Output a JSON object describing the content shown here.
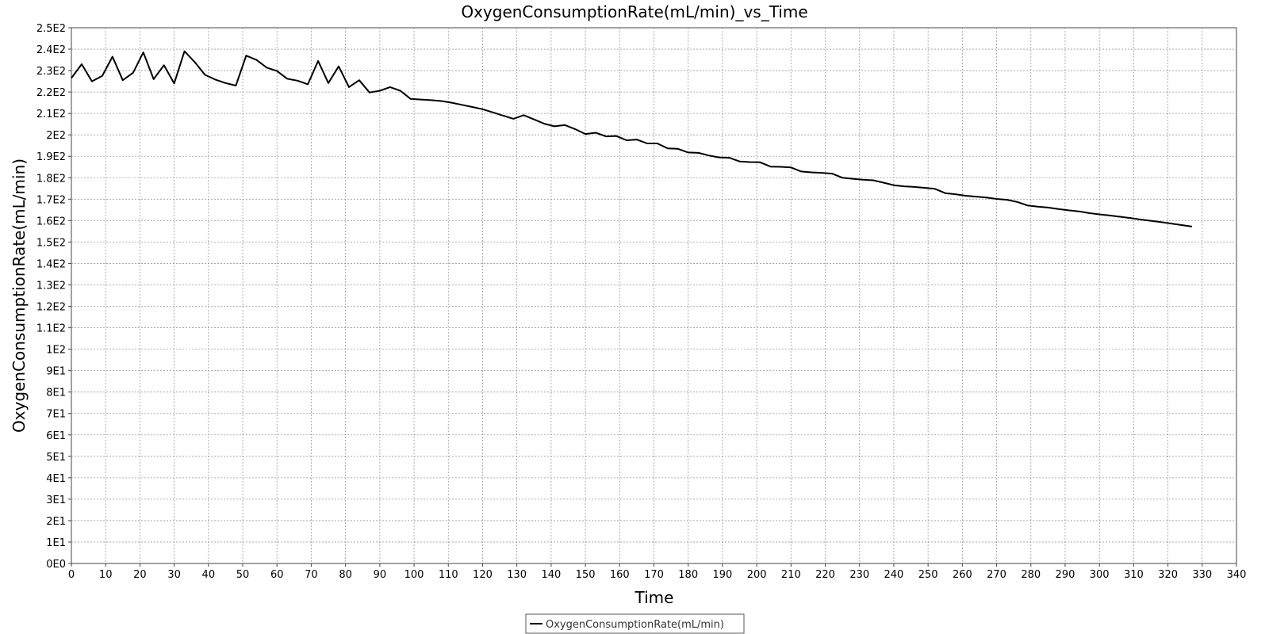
{
  "chart_data": {
    "type": "line",
    "title": "OxygenConsumptionRate(mL/min)_vs_Time",
    "xlabel": "Time",
    "ylabel": "OxygenConsumptionRate(mL/min)",
    "xlim": [
      0,
      340
    ],
    "ylim": [
      0,
      250
    ],
    "x_ticks": [
      0,
      10,
      20,
      30,
      40,
      50,
      60,
      70,
      80,
      90,
      100,
      110,
      120,
      130,
      140,
      150,
      160,
      170,
      180,
      190,
      200,
      210,
      220,
      230,
      240,
      250,
      260,
      270,
      280,
      290,
      300,
      310,
      320,
      330,
      340
    ],
    "y_ticks": [
      0,
      10,
      20,
      30,
      40,
      50,
      60,
      70,
      80,
      90,
      100,
      110,
      120,
      130,
      140,
      150,
      160,
      170,
      180,
      190,
      200,
      210,
      220,
      230,
      240,
      250
    ],
    "y_tick_labels": [
      "0E0",
      "1E1",
      "2E1",
      "3E1",
      "4E1",
      "5E1",
      "6E1",
      "7E1",
      "8E1",
      "9E1",
      "1E2",
      "1.1E2",
      "1.2E2",
      "1.3E2",
      "1.4E2",
      "1.5E2",
      "1.6E2",
      "1.7E2",
      "1.8E2",
      "1.9E2",
      "2E2",
      "2.1E2",
      "2.2E2",
      "2.3E2",
      "2.4E2",
      "2.5E2"
    ],
    "grid": true,
    "legend_position": "bottom-center",
    "series": [
      {
        "name": "OxygenConsumptionRate(mL/min)",
        "color": "#000000",
        "x": [
          0,
          3,
          6,
          9,
          12,
          15,
          18,
          21,
          24,
          27,
          30,
          33,
          36,
          39,
          42,
          45,
          48,
          51,
          54,
          57,
          60,
          63,
          66,
          69,
          72,
          75,
          78,
          81,
          84,
          87,
          90,
          93,
          96,
          99,
          102,
          105,
          108,
          111,
          114,
          117,
          120,
          123,
          126,
          129,
          132,
          135,
          138,
          141,
          144,
          147,
          150,
          153,
          156,
          159,
          162,
          165,
          168,
          171,
          174,
          177,
          180,
          183,
          186,
          189,
          192,
          195,
          198,
          201,
          204,
          207,
          210,
          213,
          216,
          219,
          222,
          225,
          228,
          231,
          234,
          237,
          240,
          243,
          246,
          249,
          252,
          255,
          258,
          261,
          264,
          267,
          270,
          273,
          276,
          279,
          282,
          285,
          288,
          291,
          294,
          297,
          300,
          303,
          306,
          309,
          312,
          315,
          318,
          321,
          324,
          327
        ],
        "values": [
          226.5,
          233,
          225,
          227.5,
          236.5,
          225.5,
          229,
          238.5,
          226,
          232.5,
          224,
          239,
          234,
          228,
          225.8,
          224.2,
          223,
          237,
          235,
          231.4,
          229.8,
          226.2,
          225.3,
          223.6,
          234.5,
          224.2,
          232,
          222.3,
          225.5,
          219.8,
          220.6,
          222.3,
          220.6,
          216.8,
          216.5,
          216.2,
          215.8,
          215,
          214,
          213,
          212,
          210.5,
          209,
          207.5,
          209.2,
          207.2,
          205.2,
          204,
          204.6,
          202.7,
          200.4,
          201,
          199.3,
          199.5,
          197.5,
          197.8,
          196,
          196,
          193.7,
          193.5,
          191.8,
          191.6,
          190.4,
          189.5,
          189.3,
          187.6,
          187.3,
          187.2,
          185.2,
          185.1,
          184.8,
          182.9,
          182.5,
          182.3,
          181.9,
          180,
          179.5,
          179.1,
          178.8,
          177.7,
          176.5,
          176,
          175.7,
          175.3,
          174.8,
          172.8,
          172.3,
          171.6,
          171.2,
          170.8,
          170.1,
          169.7,
          168.7,
          167.1,
          166.5,
          166.1,
          165.4,
          164.8,
          164.3,
          163.5,
          162.9,
          162.4,
          161.8,
          161.2,
          160.5,
          159.9,
          159.3,
          158.6,
          157.9,
          157.2
        ]
      }
    ]
  }
}
